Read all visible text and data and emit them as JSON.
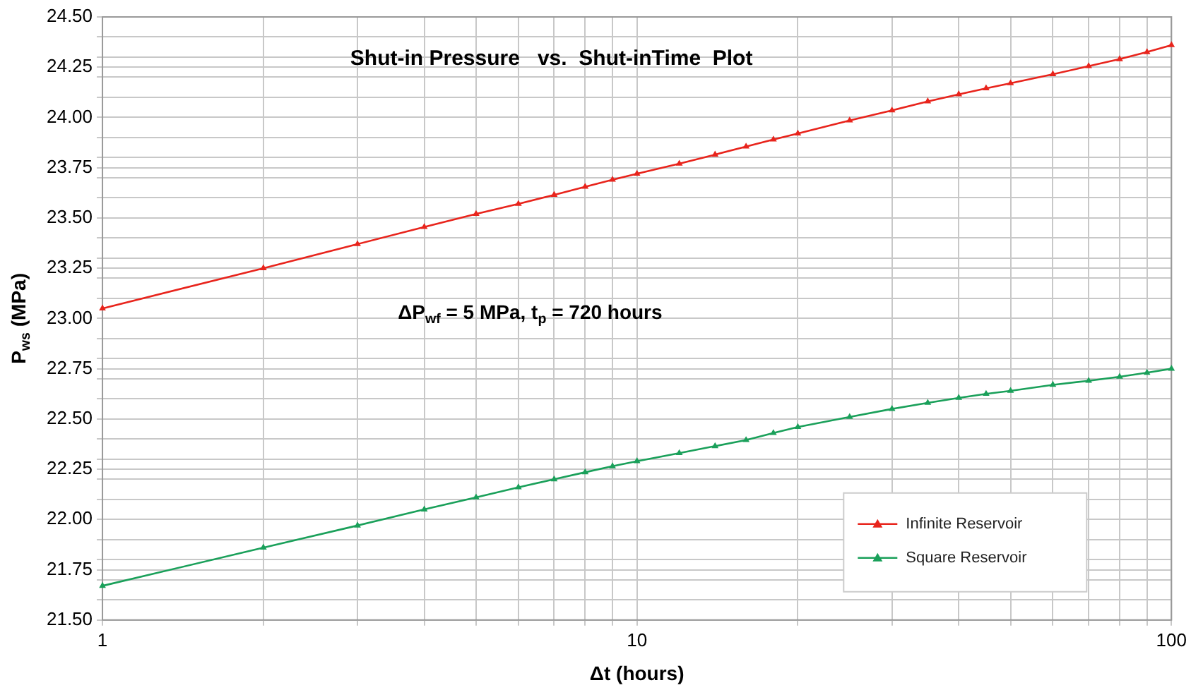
{
  "chart_data": {
    "type": "line",
    "title": "Shut-in Pressure   vs.  Shut-inTime  Plot",
    "xlabel": "Δt (hours)",
    "ylabel": "P$_{ws}$ (MPa)",
    "annotations": [
      "ΔP$_{wf}$ = 5 MPa, t$_{p}$ = 720 hours"
    ],
    "log": "x",
    "grid": true,
    "legend": "bottom right",
    "marker": "triangle",
    "line_style": "solid",
    "xlim": [
      1,
      100
    ],
    "xticks": [
      1,
      {
        "value": 2,
        "label": null
      },
      {
        "value": 3,
        "label": null
      },
      {
        "value": 4,
        "label": null
      },
      {
        "value": 5,
        "label": null
      },
      {
        "value": 6,
        "label": null
      },
      {
        "value": 7,
        "label": null
      },
      {
        "value": 8,
        "label": null
      },
      {
        "value": 9,
        "label": null
      },
      10,
      {
        "value": 20,
        "label": null
      },
      {
        "value": 30,
        "label": null
      },
      {
        "value": 40,
        "label": null
      },
      {
        "value": 50,
        "label": null
      },
      {
        "value": 60,
        "label": null
      },
      {
        "value": 70,
        "label": null
      },
      {
        "value": 80,
        "label": null
      },
      {
        "value": 90,
        "label": null
      },
      100
    ],
    "ylim": [
      21.5,
      24.5
    ],
    "yticks": [
      {
        "value": 21.5,
        "label": "21.50"
      },
      {
        "value": 21.6,
        "label": null
      },
      {
        "value": 21.7,
        "label": null
      },
      {
        "value": 21.75,
        "label": "21.75"
      },
      {
        "value": 21.8,
        "label": null
      },
      {
        "value": 21.9,
        "label": null
      },
      {
        "value": 22,
        "label": "22.00"
      },
      {
        "value": 22.1,
        "label": null
      },
      {
        "value": 22.2,
        "label": null
      },
      {
        "value": 22.25,
        "label": "22.25"
      },
      {
        "value": 22.3,
        "label": null
      },
      {
        "value": 22.4,
        "label": null
      },
      {
        "value": 22.5,
        "label": "22.50"
      },
      {
        "value": 22.6,
        "label": null
      },
      {
        "value": 22.7,
        "label": null
      },
      {
        "value": 22.75,
        "label": "22.75"
      },
      {
        "value": 22.8,
        "label": null
      },
      {
        "value": 22.9,
        "label": null
      },
      {
        "value": 23,
        "label": "23.00"
      },
      {
        "value": 23.1,
        "label": null
      },
      {
        "value": 23.2,
        "label": null
      },
      {
        "value": 23.25,
        "label": "23.25"
      },
      {
        "value": 23.3,
        "label": null
      },
      {
        "value": 23.4,
        "label": null
      },
      {
        "value": 23.5,
        "label": "23.50"
      },
      {
        "value": 23.6,
        "label": null
      },
      {
        "value": 23.7,
        "label": null
      },
      {
        "value": 23.75,
        "label": "23.75"
      },
      {
        "value": 23.8,
        "label": null
      },
      {
        "value": 23.9,
        "label": null
      },
      {
        "value": 24,
        "label": "24.00"
      },
      {
        "value": 24.1,
        "label": null
      },
      {
        "value": 24.2,
        "label": null
      },
      {
        "value": 24.25,
        "label": "24.25"
      },
      {
        "value": 24.3,
        "label": null
      },
      {
        "value": 24.4,
        "label": null
      },
      {
        "value": 24.5,
        "label": "24.50"
      }
    ],
    "x": [
      1,
      2,
      3,
      4,
      5,
      6,
      7,
      8,
      9,
      10,
      12,
      14,
      16,
      18,
      20,
      25,
      30,
      35,
      40,
      45,
      50,
      60,
      70,
      80,
      90,
      100
    ],
    "series": [
      {
        "name": "Infinite Reservoir",
        "color": "#e8241c",
        "values": [
          23.05,
          23.25,
          23.37,
          23.455,
          23.52,
          23.57,
          23.615,
          23.655,
          23.69,
          23.72,
          23.77,
          23.815,
          23.855,
          23.89,
          23.92,
          23.985,
          24.035,
          24.08,
          24.115,
          24.145,
          24.17,
          24.215,
          24.255,
          24.29,
          24.325,
          24.36
        ]
      },
      {
        "name": "Square Reservoir",
        "color": "#1aa05a",
        "values": [
          21.67,
          21.86,
          21.97,
          22.05,
          22.11,
          22.16,
          22.2,
          22.235,
          22.265,
          22.29,
          22.33,
          22.365,
          22.395,
          22.43,
          22.46,
          22.51,
          22.55,
          22.58,
          22.605,
          22.625,
          22.64,
          22.67,
          22.69,
          22.71,
          22.73,
          22.75
        ]
      }
    ]
  }
}
